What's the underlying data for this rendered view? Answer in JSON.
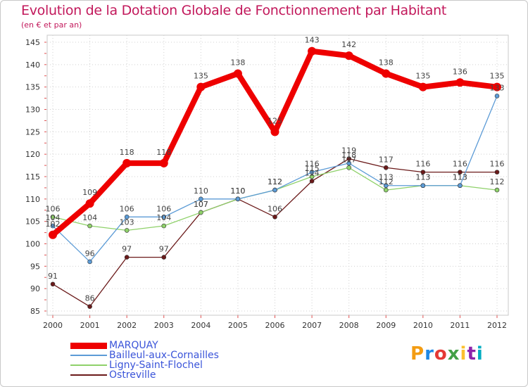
{
  "header": {
    "title": "Evolution de la Dotation Globale de Fonctionnement par Habitant",
    "subtitle": "(en € et par an)"
  },
  "brand": {
    "text": "Proxiti",
    "colors": [
      "#f39c12",
      "#1e88e5",
      "#e53935",
      "#43a047",
      "#fbc02d",
      "#8e24aa",
      "#00acc1"
    ]
  },
  "chart_data": {
    "type": "line",
    "title": "Evolution de la Dotation Globale de Fonctionnement par Habitant",
    "subtitle": "(en € et par an)",
    "xlabel": "",
    "ylabel": "",
    "x": [
      "2000",
      "2001",
      "2002",
      "2003",
      "2004",
      "2005",
      "2006",
      "2007",
      "2008",
      "2009",
      "2010",
      "2011",
      "2012"
    ],
    "ylim": [
      85,
      145
    ],
    "yticks": [
      85,
      90,
      95,
      100,
      105,
      110,
      115,
      120,
      125,
      130,
      135,
      140,
      145
    ],
    "legend_position": "bottom-left",
    "series": [
      {
        "name": "MARQUAY",
        "color": "#ee0000",
        "values": [
          102,
          109,
          118,
          118,
          135,
          138,
          125,
          143,
          142,
          138,
          135,
          136,
          135
        ]
      },
      {
        "name": "Bailleul-aux-Cornailles",
        "color": "#5c9bd6",
        "values": [
          104,
          96,
          106,
          106,
          110,
          110,
          112,
          116,
          118,
          113,
          113,
          113,
          133
        ]
      },
      {
        "name": "Ligny-Saint-Flochel",
        "color": "#8fd16a",
        "values": [
          106,
          104,
          103,
          104,
          107,
          110,
          112,
          115,
          117,
          112,
          113,
          113,
          112
        ]
      },
      {
        "name": "Ostreville",
        "color": "#6b1a1a",
        "values": [
          91,
          86,
          97,
          97,
          107,
          110,
          106,
          114,
          119,
          117,
          116,
          116,
          116
        ]
      }
    ]
  }
}
